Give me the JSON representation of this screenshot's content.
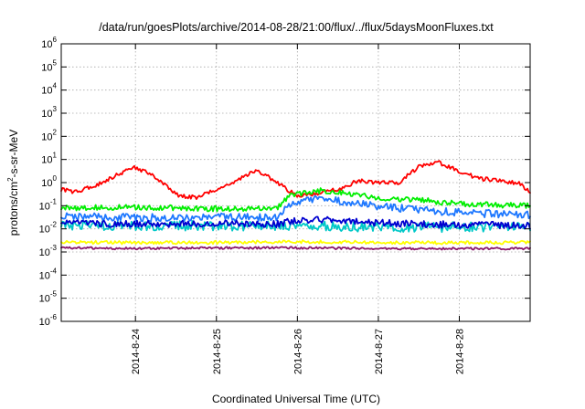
{
  "chart_data": {
    "type": "line",
    "title": "/data/run/goesPlots/archive/2014-08-28/21:00/flux/../flux/5daysMoonFluxes.txt",
    "xlabel": "Coordinated Universal Time (UTC)",
    "ylabel_parts": [
      "protons/cm",
      "2",
      "-s-sr-MeV"
    ],
    "yscale": "log",
    "ylim": [
      1e-06,
      1000000.0
    ],
    "xlim": [
      "2014-08-23T02:00",
      "2014-08-28T21:00"
    ],
    "grid": true,
    "legend": "none",
    "x_ticks": [
      {
        "label": "2014-8-24",
        "time": "2014-08-24T00:00"
      },
      {
        "label": "2014-8-25",
        "time": "2014-08-25T00:00"
      },
      {
        "label": "2014-8-26",
        "time": "2014-08-26T00:00"
      },
      {
        "label": "2014-8-27",
        "time": "2014-08-27T00:00"
      },
      {
        "label": "2014-8-28",
        "time": "2014-08-28T00:00"
      }
    ],
    "y_ticks": [
      {
        "mantissa": "10",
        "exp": "-6"
      },
      {
        "mantissa": "10",
        "exp": "-5"
      },
      {
        "mantissa": "10",
        "exp": "-4"
      },
      {
        "mantissa": "10",
        "exp": "-3"
      },
      {
        "mantissa": "10",
        "exp": "-2"
      },
      {
        "mantissa": "10",
        "exp": "-1"
      },
      {
        "mantissa": "10",
        "exp": "0"
      },
      {
        "mantissa": "10",
        "exp": "1"
      },
      {
        "mantissa": "10",
        "exp": "2"
      },
      {
        "mantissa": "10",
        "exp": "3"
      },
      {
        "mantissa": "10",
        "exp": "4"
      },
      {
        "mantissa": "10",
        "exp": "5"
      },
      {
        "mantissa": "10",
        "exp": "6"
      }
    ],
    "series": [
      {
        "color": "#ff0000",
        "noise": 0.09,
        "x": [
          "2014-08-23T02:00",
          "2014-08-23T06:00",
          "2014-08-23T12:00",
          "2014-08-23T18:00",
          "2014-08-24T00:00",
          "2014-08-24T06:00",
          "2014-08-24T12:00",
          "2014-08-24T18:00",
          "2014-08-25T00:00",
          "2014-08-25T06:00",
          "2014-08-25T12:00",
          "2014-08-25T18:00",
          "2014-08-26T00:00",
          "2014-08-26T06:00",
          "2014-08-26T12:00",
          "2014-08-26T18:00",
          "2014-08-27T00:00",
          "2014-08-27T06:00",
          "2014-08-27T12:00",
          "2014-08-27T18:00",
          "2014-08-28T00:00",
          "2014-08-28T06:00",
          "2014-08-28T12:00",
          "2014-08-28T18:00",
          "2014-08-28T21:00"
        ],
        "y": [
          0.5,
          0.4,
          0.7,
          2.0,
          4.5,
          1.8,
          0.3,
          0.22,
          0.5,
          1.2,
          3.5,
          1.0,
          0.25,
          0.35,
          0.5,
          1.2,
          1.0,
          1.0,
          5.0,
          7.5,
          3.0,
          1.5,
          1.2,
          0.9,
          0.35
        ]
      },
      {
        "color": "#00ee00",
        "noise": 0.12,
        "x": [
          "2014-08-23T02:00",
          "2014-08-24T00:00",
          "2014-08-25T00:00",
          "2014-08-25T18:00",
          "2014-08-25T22:00",
          "2014-08-26T06:00",
          "2014-08-26T12:00",
          "2014-08-27T00:00",
          "2014-08-27T12:00",
          "2014-08-28T00:00",
          "2014-08-28T21:00"
        ],
        "y": [
          0.08,
          0.085,
          0.075,
          0.08,
          0.3,
          0.45,
          0.4,
          0.22,
          0.18,
          0.12,
          0.1
        ]
      },
      {
        "color": "#1e78ff",
        "noise": 0.17,
        "x": [
          "2014-08-23T02:00",
          "2014-08-24T00:00",
          "2014-08-25T00:00",
          "2014-08-25T18:00",
          "2014-08-25T22:00",
          "2014-08-26T06:00",
          "2014-08-26T12:00",
          "2014-08-27T00:00",
          "2014-08-27T12:00",
          "2014-08-28T00:00",
          "2014-08-28T21:00"
        ],
        "y": [
          0.035,
          0.03,
          0.032,
          0.03,
          0.12,
          0.2,
          0.17,
          0.09,
          0.07,
          0.05,
          0.04
        ]
      },
      {
        "color": "#00c8c8",
        "noise": 0.22,
        "x": [
          "2014-08-23T02:00",
          "2014-08-24T00:00",
          "2014-08-25T00:00",
          "2014-08-26T00:00",
          "2014-08-27T00:00",
          "2014-08-28T00:00",
          "2014-08-28T21:00"
        ],
        "y": [
          0.014,
          0.013,
          0.014,
          0.013,
          0.012,
          0.012,
          0.012
        ]
      },
      {
        "color": "#0000d0",
        "noise": 0.15,
        "x": [
          "2014-08-23T02:00",
          "2014-08-24T00:00",
          "2014-08-25T00:00",
          "2014-08-25T18:00",
          "2014-08-25T22:00",
          "2014-08-26T06:00",
          "2014-08-26T12:00",
          "2014-08-27T00:00",
          "2014-08-27T12:00",
          "2014-08-28T00:00",
          "2014-08-28T21:00"
        ],
        "y": [
          0.018,
          0.016,
          0.017,
          0.016,
          0.022,
          0.026,
          0.024,
          0.018,
          0.016,
          0.015,
          0.014
        ]
      },
      {
        "color": "#ffff00",
        "noise": 0.07,
        "x": [
          "2014-08-23T02:00",
          "2014-08-24T00:00",
          "2014-08-25T00:00",
          "2014-08-26T00:00",
          "2014-08-27T00:00",
          "2014-08-28T00:00",
          "2014-08-28T21:00"
        ],
        "y": [
          0.0027,
          0.0025,
          0.0026,
          0.0028,
          0.0026,
          0.0025,
          0.0026
        ]
      },
      {
        "color": "#8b1a6b",
        "noise": 0.05,
        "x": [
          "2014-08-23T02:00",
          "2014-08-24T00:00",
          "2014-08-25T00:00",
          "2014-08-26T00:00",
          "2014-08-27T00:00",
          "2014-08-28T00:00",
          "2014-08-28T21:00"
        ],
        "y": [
          0.0015,
          0.0014,
          0.0015,
          0.0015,
          0.0014,
          0.0014,
          0.0014
        ]
      }
    ]
  }
}
